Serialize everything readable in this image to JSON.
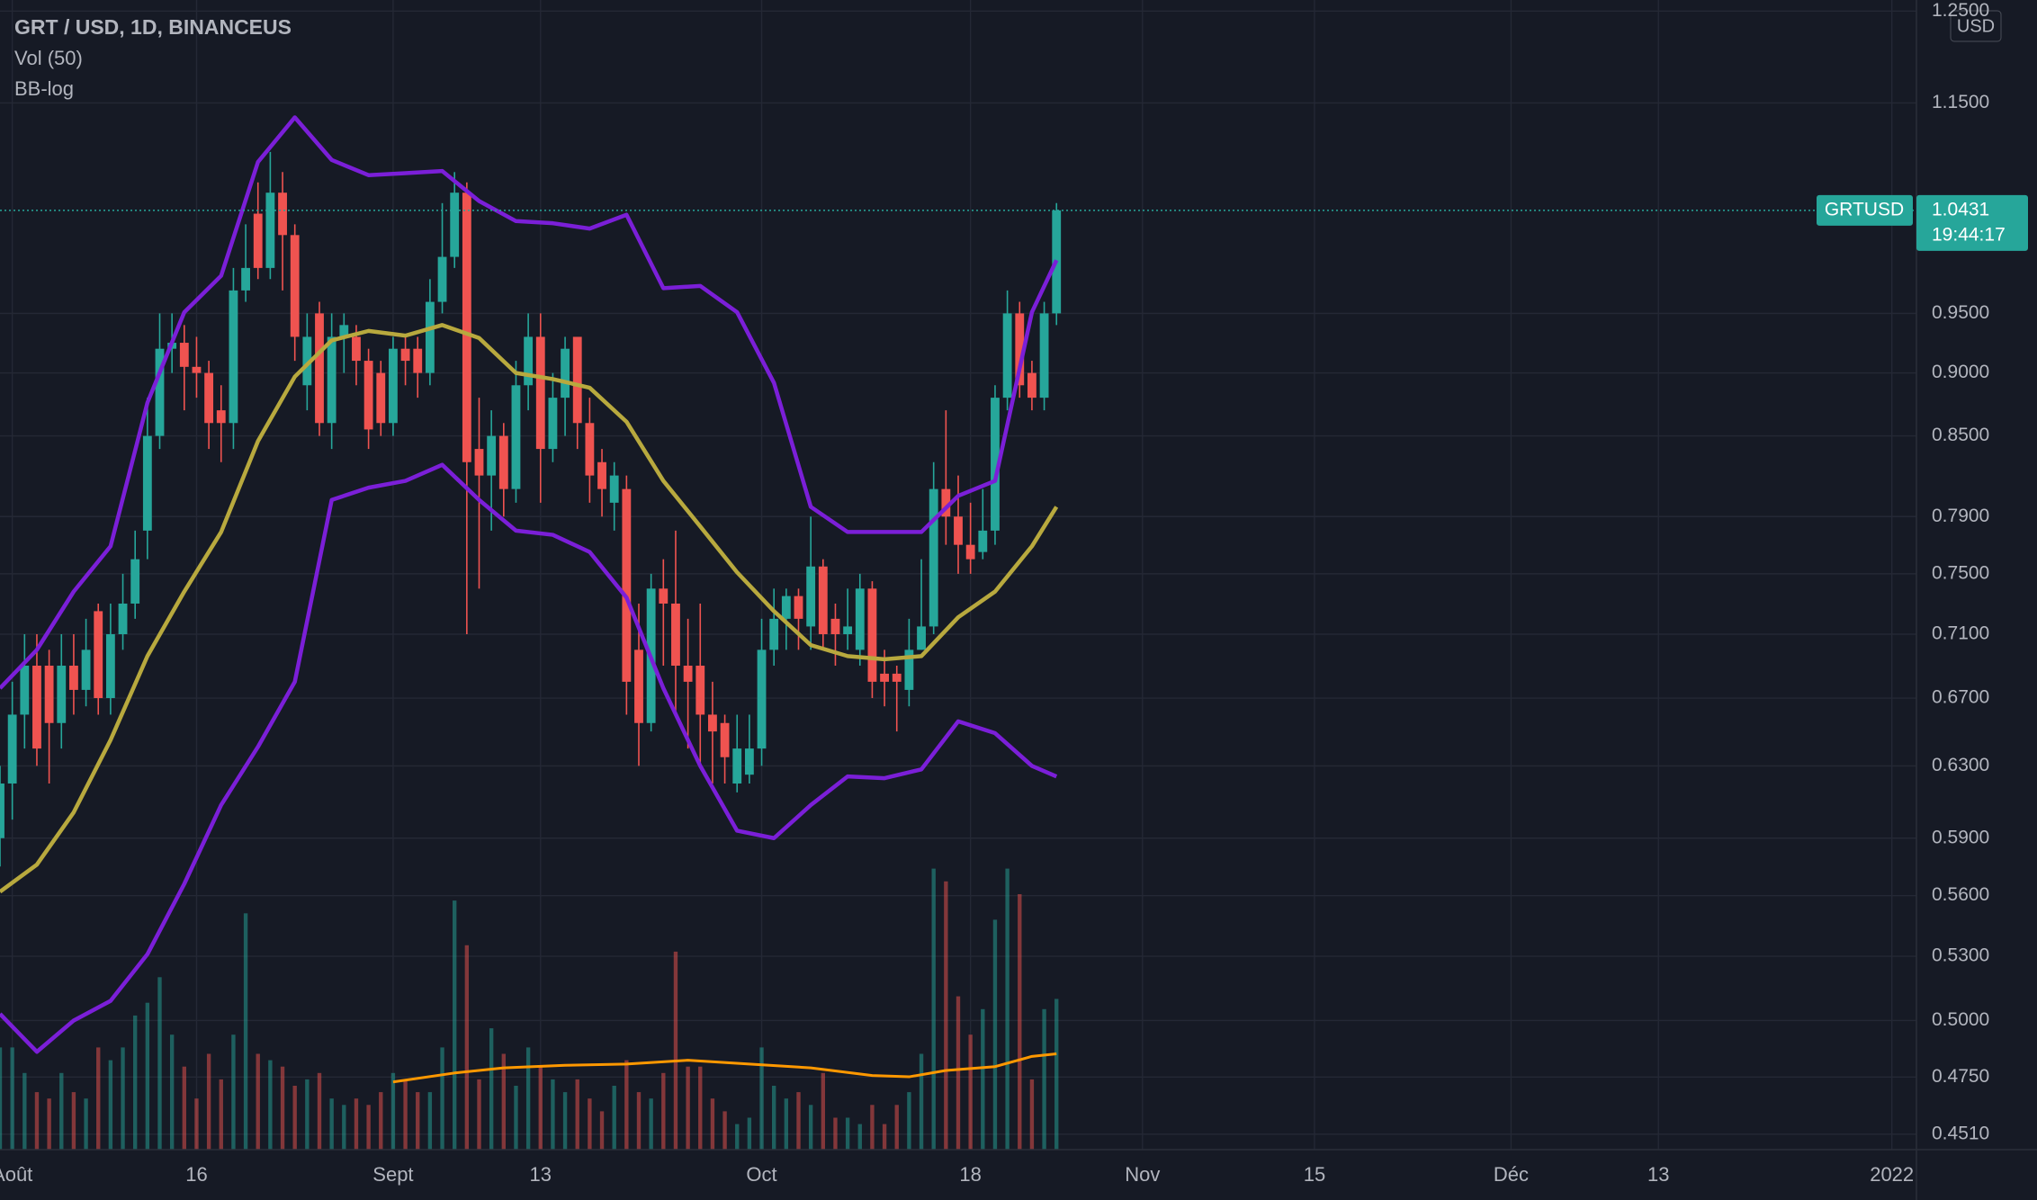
{
  "chart_data": {
    "type": "candlestick",
    "title": "GRT / USD, 1D, BINANCEUS",
    "indicators": [
      "Vol (50)",
      "BB-log"
    ],
    "currency": "USD",
    "symbol": "GRTUSD",
    "countdown": "19:44:17",
    "log_scale": true,
    "grid": true,
    "up_color": "#26a69a",
    "down_color": "#ef5350",
    "x": [
      "07-31",
      "08-01",
      "08-02",
      "08-03",
      "08-04",
      "08-05",
      "08-06",
      "08-07",
      "08-08",
      "08-09",
      "08-10",
      "08-11",
      "08-12",
      "08-13",
      "08-14",
      "08-15",
      "08-16",
      "08-17",
      "08-18",
      "08-19",
      "08-20",
      "08-21",
      "08-22",
      "08-23",
      "08-24",
      "08-25",
      "08-26",
      "08-27",
      "08-28",
      "08-29",
      "08-30",
      "08-31",
      "09-01",
      "09-02",
      "09-03",
      "09-04",
      "09-05",
      "09-06",
      "09-07",
      "09-08",
      "09-09",
      "09-10",
      "09-11",
      "09-12",
      "09-13",
      "09-14",
      "09-15",
      "09-16",
      "09-17",
      "09-18",
      "09-19",
      "09-20",
      "09-21",
      "09-22",
      "09-23",
      "09-24",
      "09-25",
      "09-26",
      "09-27",
      "09-28",
      "09-29",
      "09-30",
      "10-01",
      "10-02",
      "10-03",
      "10-04",
      "10-05",
      "10-06",
      "10-07",
      "10-08",
      "10-09",
      "10-10",
      "10-11",
      "10-12",
      "10-13",
      "10-14",
      "10-15",
      "10-16",
      "10-17",
      "10-18",
      "10-19",
      "10-20",
      "10-21",
      "10-22",
      "10-23",
      "10-24",
      "10-25"
    ],
    "open": [
      0.59,
      0.62,
      0.66,
      0.69,
      0.69,
      0.655,
      0.69,
      0.675,
      0.725,
      0.67,
      0.71,
      0.73,
      0.78,
      0.85,
      0.92,
      0.925,
      0.905,
      0.9,
      0.87,
      0.86,
      0.97,
      1.04,
      0.99,
      1.06,
      1.02,
      0.89,
      0.95,
      0.86,
      0.93,
      0.93,
      0.91,
      0.9,
      0.86,
      0.92,
      0.92,
      0.9,
      0.96,
      1.0,
      1.06,
      0.84,
      0.82,
      0.85,
      0.81,
      0.89,
      0.93,
      0.84,
      0.88,
      0.93,
      0.86,
      0.83,
      0.8,
      0.81,
      0.7,
      0.655,
      0.74,
      0.73,
      0.69,
      0.69,
      0.66,
      0.655,
      0.62,
      0.625,
      0.64,
      0.7,
      0.72,
      0.735,
      0.715,
      0.755,
      0.72,
      0.71,
      0.7,
      0.74,
      0.685,
      0.685,
      0.675,
      0.7,
      0.715,
      0.81,
      0.79,
      0.77,
      0.765,
      0.78,
      0.88,
      0.95,
      0.9,
      0.88,
      0.95
    ],
    "high": [
      0.63,
      0.68,
      0.71,
      0.71,
      0.7,
      0.71,
      0.71,
      0.72,
      0.73,
      0.73,
      0.75,
      0.78,
      0.88,
      0.95,
      0.95,
      0.94,
      0.93,
      0.91,
      0.89,
      0.99,
      1.03,
      1.07,
      1.1,
      1.08,
      1.03,
      0.95,
      0.96,
      0.95,
      0.95,
      0.94,
      0.92,
      0.91,
      0.93,
      0.93,
      0.93,
      0.98,
      1.05,
      1.08,
      1.07,
      0.88,
      0.87,
      0.86,
      0.91,
      0.95,
      0.95,
      0.9,
      0.93,
      0.93,
      0.88,
      0.84,
      0.83,
      0.82,
      0.73,
      0.75,
      0.76,
      0.78,
      0.72,
      0.73,
      0.68,
      0.66,
      0.66,
      0.66,
      0.72,
      0.74,
      0.74,
      0.74,
      0.79,
      0.76,
      0.73,
      0.74,
      0.75,
      0.745,
      0.7,
      0.69,
      0.72,
      0.76,
      0.83,
      0.87,
      0.82,
      0.8,
      0.81,
      0.89,
      0.97,
      0.96,
      0.91,
      0.96,
      1.05
    ],
    "low": [
      0.575,
      0.6,
      0.64,
      0.63,
      0.62,
      0.64,
      0.66,
      0.665,
      0.66,
      0.66,
      0.7,
      0.72,
      0.76,
      0.84,
      0.9,
      0.87,
      0.88,
      0.84,
      0.83,
      0.84,
      0.96,
      0.98,
      0.98,
      0.97,
      0.91,
      0.87,
      0.85,
      0.84,
      0.9,
      0.89,
      0.84,
      0.85,
      0.85,
      0.89,
      0.88,
      0.89,
      0.95,
      0.99,
      0.71,
      0.74,
      0.78,
      0.79,
      0.8,
      0.87,
      0.8,
      0.83,
      0.85,
      0.84,
      0.8,
      0.79,
      0.78,
      0.66,
      0.63,
      0.65,
      0.69,
      0.66,
      0.64,
      0.63,
      0.62,
      0.62,
      0.615,
      0.62,
      0.63,
      0.69,
      0.7,
      0.7,
      0.7,
      0.7,
      0.69,
      0.7,
      0.69,
      0.67,
      0.665,
      0.65,
      0.665,
      0.7,
      0.71,
      0.77,
      0.75,
      0.75,
      0.76,
      0.77,
      0.87,
      0.88,
      0.87,
      0.87,
      0.94
    ],
    "close": [
      0.62,
      0.66,
      0.69,
      0.64,
      0.655,
      0.69,
      0.675,
      0.7,
      0.67,
      0.71,
      0.73,
      0.76,
      0.85,
      0.92,
      0.925,
      0.905,
      0.9,
      0.86,
      0.86,
      0.97,
      0.99,
      0.99,
      1.06,
      1.02,
      0.93,
      0.93,
      0.86,
      0.93,
      0.94,
      0.91,
      0.855,
      0.86,
      0.92,
      0.91,
      0.9,
      0.96,
      1.0,
      1.06,
      0.83,
      0.82,
      0.85,
      0.81,
      0.89,
      0.93,
      0.84,
      0.88,
      0.92,
      0.86,
      0.82,
      0.81,
      0.82,
      0.68,
      0.655,
      0.74,
      0.73,
      0.69,
      0.68,
      0.66,
      0.65,
      0.635,
      0.64,
      0.64,
      0.7,
      0.72,
      0.735,
      0.72,
      0.755,
      0.71,
      0.71,
      0.715,
      0.74,
      0.68,
      0.68,
      0.68,
      0.7,
      0.715,
      0.81,
      0.79,
      0.77,
      0.76,
      0.78,
      0.88,
      0.95,
      0.89,
      0.88,
      0.95,
      1.0431
    ],
    "volume": {
      "axis": "y2",
      "up_color": "rgba(38,166,154,0.5)",
      "down_color": "rgba(239,83,80,0.5)",
      "values": [
        80,
        80,
        60,
        45,
        40,
        60,
        45,
        40,
        80,
        70,
        80,
        105,
        115,
        135,
        90,
        65,
        40,
        75,
        55,
        90,
        185,
        75,
        70,
        65,
        50,
        55,
        60,
        40,
        35,
        40,
        35,
        45,
        60,
        55,
        45,
        45,
        80,
        195,
        160,
        55,
        95,
        75,
        50,
        80,
        65,
        55,
        45,
        55,
        40,
        30,
        50,
        70,
        45,
        40,
        60,
        155,
        65,
        65,
        40,
        30,
        20,
        25,
        80,
        50,
        40,
        45,
        35,
        60,
        25,
        25,
        20,
        35,
        20,
        35,
        45,
        75,
        220,
        210,
        120,
        90,
        110,
        180,
        220,
        200,
        55,
        110,
        118
      ]
    },
    "volume_ma": {
      "axis": "y2",
      "color": "#ff9800",
      "x": [
        "09-01",
        "09-06",
        "09-10",
        "09-15",
        "09-20",
        "09-25",
        "09-30",
        "10-05",
        "10-10",
        "10-13",
        "10-16",
        "10-20",
        "10-23",
        "10-25"
      ],
      "values": [
        53,
        60,
        64,
        66,
        67,
        70,
        67,
        64,
        58,
        57,
        62,
        65,
        73,
        75
      ]
    },
    "overlays": [
      {
        "color": "#7b1fd8",
        "x": [
          "07-31",
          "08-03",
          "08-06",
          "08-09",
          "08-12",
          "08-15",
          "08-18",
          "08-21",
          "08-24",
          "08-27",
          "08-30",
          "09-02",
          "09-05",
          "09-08",
          "09-11",
          "09-14",
          "09-17",
          "09-20",
          "09-23",
          "09-26",
          "09-29",
          "10-02",
          "10-05",
          "10-08",
          "10-11",
          "10-14",
          "10-17",
          "10-20",
          "10-23",
          "10-25"
        ],
        "values": [
          0.676,
          0.7,
          0.738,
          0.769,
          0.876,
          0.951,
          0.983,
          1.09,
          1.135,
          1.092,
          1.077,
          1.079,
          1.081,
          1.052,
          1.033,
          1.031,
          1.026,
          1.039,
          0.972,
          0.974,
          0.951,
          0.892,
          0.797,
          0.779,
          0.779,
          0.779,
          0.805,
          0.816,
          0.951,
          0.997
        ]
      },
      {
        "color": "#b8a93e",
        "x": [
          "07-31",
          "08-03",
          "08-06",
          "08-09",
          "08-12",
          "08-15",
          "08-18",
          "08-21",
          "08-24",
          "08-27",
          "08-30",
          "09-02",
          "09-05",
          "09-08",
          "09-11",
          "09-14",
          "09-17",
          "09-20",
          "09-23",
          "09-26",
          "09-29",
          "10-02",
          "10-05",
          "10-08",
          "10-11",
          "10-14",
          "10-17",
          "10-20",
          "10-23",
          "10-25"
        ],
        "values": [
          0.562,
          0.576,
          0.604,
          0.645,
          0.696,
          0.738,
          0.779,
          0.846,
          0.897,
          0.927,
          0.935,
          0.931,
          0.94,
          0.929,
          0.9,
          0.895,
          0.888,
          0.861,
          0.816,
          0.783,
          0.751,
          0.725,
          0.703,
          0.696,
          0.694,
          0.696,
          0.721,
          0.738,
          0.769,
          0.797
        ]
      },
      {
        "color": "#7b1fd8",
        "x": [
          "07-31",
          "08-03",
          "08-06",
          "08-09",
          "08-12",
          "08-15",
          "08-18",
          "08-21",
          "08-24",
          "08-27",
          "08-30",
          "09-02",
          "09-05",
          "09-08",
          "09-11",
          "09-14",
          "09-17",
          "09-20",
          "09-23",
          "09-26",
          "09-29",
          "10-02",
          "10-05",
          "10-08",
          "10-11",
          "10-14",
          "10-17",
          "10-20",
          "10-23",
          "10-25"
        ],
        "values": [
          0.503,
          0.486,
          0.5,
          0.509,
          0.531,
          0.566,
          0.608,
          0.641,
          0.68,
          0.802,
          0.811,
          0.816,
          0.828,
          0.802,
          0.78,
          0.777,
          0.765,
          0.734,
          0.676,
          0.63,
          0.594,
          0.59,
          0.608,
          0.624,
          0.623,
          0.628,
          0.656,
          0.649,
          0.63,
          0.624
        ]
      }
    ],
    "xlim": [
      "07-31",
      "01-03"
    ],
    "xticks": [
      {
        "value": "08-01",
        "label": "Août"
      },
      {
        "value": "08-16",
        "label": "16"
      },
      {
        "value": "09-01",
        "label": "Sept"
      },
      {
        "value": "09-13",
        "label": "13"
      },
      {
        "value": "10-01",
        "label": "Oct"
      },
      {
        "value": "10-18",
        "label": "18"
      },
      {
        "value": "11-01",
        "label": "Nov"
      },
      {
        "value": "11-15",
        "label": "15"
      },
      {
        "value": "12-01",
        "label": "Déc"
      },
      {
        "value": "12-13",
        "label": "13"
      },
      {
        "value": "01-01",
        "label": "2022"
      }
    ],
    "ylim": [
      0.4447,
      1.2626
    ],
    "yticks": [
      {
        "value": 0.451,
        "label": "0.4510"
      },
      {
        "value": 0.475,
        "label": "0.4750"
      },
      {
        "value": 0.5,
        "label": "0.5000"
      },
      {
        "value": 0.53,
        "label": "0.5300"
      },
      {
        "value": 0.56,
        "label": "0.5600"
      },
      {
        "value": 0.59,
        "label": "0.5900"
      },
      {
        "value": 0.63,
        "label": "0.6300"
      },
      {
        "value": 0.67,
        "label": "0.6700"
      },
      {
        "value": 0.71,
        "label": "0.7100"
      },
      {
        "value": 0.75,
        "label": "0.7500"
      },
      {
        "value": 0.79,
        "label": "0.7900"
      },
      {
        "value": 0.85,
        "label": "0.8500"
      },
      {
        "value": 0.9,
        "label": "0.9000"
      },
      {
        "value": 0.95,
        "label": "0.9500"
      },
      {
        "value": 1.15,
        "label": "1.1500"
      },
      {
        "value": 1.25,
        "label": "1.2500"
      }
    ],
    "y2lim": [
      0,
      900
    ]
  }
}
